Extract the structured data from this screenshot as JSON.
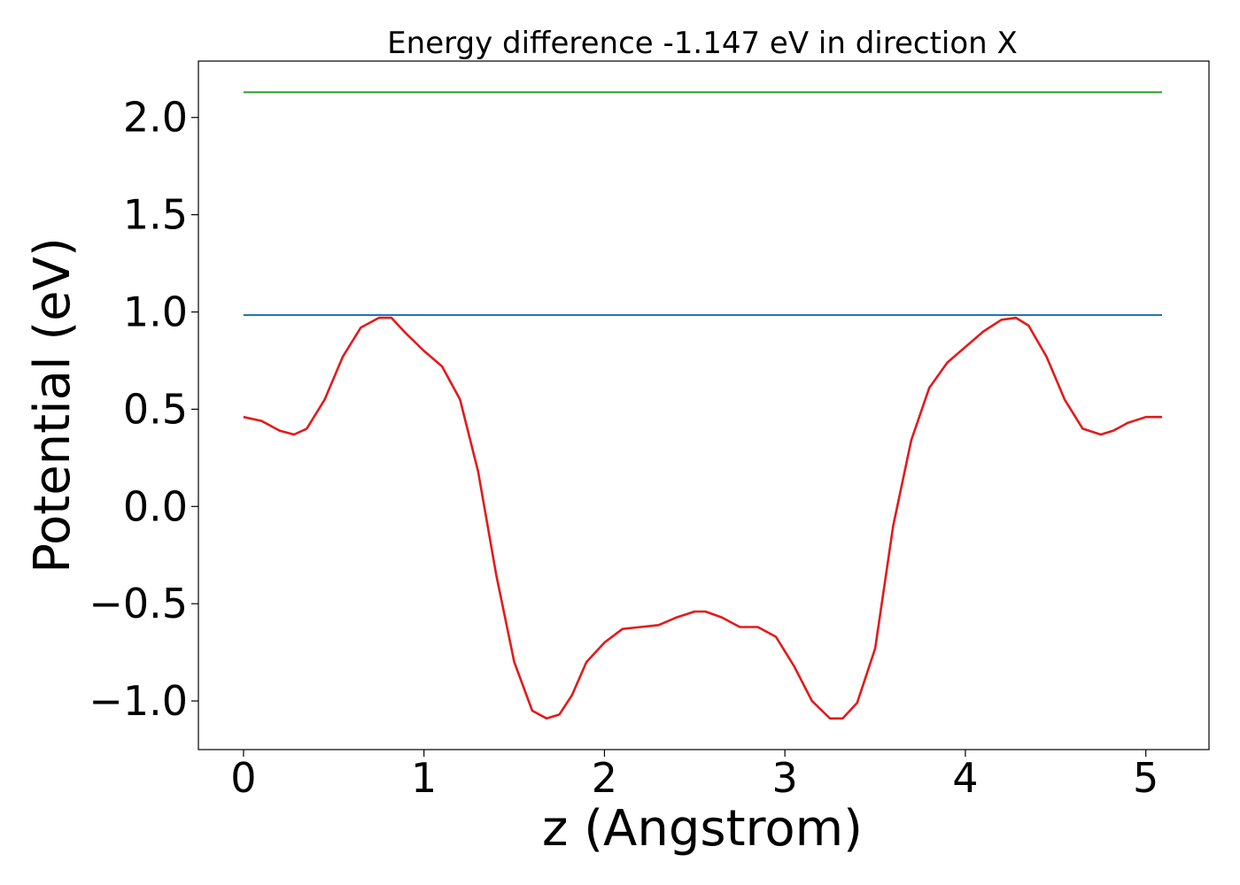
{
  "chart_data": {
    "type": "line",
    "title": "Energy difference -1.147 eV in direction X",
    "xlabel": "z (Angstrom)",
    "ylabel": "Potential (eV)",
    "xlim": [
      -0.25,
      5.35
    ],
    "ylim": [
      -1.25,
      2.29
    ],
    "xticks": [
      0,
      1,
      2,
      3,
      4,
      5
    ],
    "xtick_labels": [
      "0",
      "1",
      "2",
      "3",
      "4",
      "5"
    ],
    "yticks": [
      -1.0,
      -0.5,
      0.0,
      0.5,
      1.0,
      1.5,
      2.0
    ],
    "ytick_labels": [
      "−1.0",
      "−0.5",
      "0.0",
      "0.5",
      "1.0",
      "1.5",
      "2.0"
    ],
    "grid": false,
    "series": [
      {
        "color": "#2ca02c",
        "x": [
          0,
          5.09
        ],
        "y": [
          2.13,
          2.13
        ]
      },
      {
        "color": "#1f77b4",
        "x": [
          0,
          5.09
        ],
        "y": [
          0.984,
          0.984
        ]
      },
      {
        "color": "#e31a1c",
        "x": [
          0,
          0.1,
          0.2,
          0.28,
          0.35,
          0.45,
          0.55,
          0.65,
          0.75,
          0.82,
          0.9,
          1.0,
          1.1,
          1.2,
          1.3,
          1.4,
          1.5,
          1.6,
          1.68,
          1.75,
          1.82,
          1.9,
          2.0,
          2.1,
          2.2,
          2.3,
          2.4,
          2.5,
          2.56,
          2.65,
          2.75,
          2.85,
          2.95,
          3.05,
          3.15,
          3.25,
          3.32,
          3.4,
          3.5,
          3.6,
          3.7,
          3.8,
          3.9,
          4.0,
          4.1,
          4.2,
          4.28,
          4.35,
          4.45,
          4.55,
          4.65,
          4.75,
          4.82,
          4.9,
          5.0,
          5.09
        ],
        "y": [
          0.46,
          0.44,
          0.39,
          0.37,
          0.4,
          0.55,
          0.77,
          0.92,
          0.97,
          0.97,
          0.89,
          0.8,
          0.72,
          0.55,
          0.18,
          -0.35,
          -0.8,
          -1.05,
          -1.09,
          -1.07,
          -0.97,
          -0.8,
          -0.7,
          -0.63,
          -0.62,
          -0.61,
          -0.57,
          -0.54,
          -0.54,
          -0.57,
          -0.62,
          -0.62,
          -0.67,
          -0.82,
          -1.0,
          -1.09,
          -1.09,
          -1.01,
          -0.73,
          -0.1,
          0.34,
          0.61,
          0.74,
          0.82,
          0.9,
          0.96,
          0.97,
          0.93,
          0.77,
          0.55,
          0.4,
          0.37,
          0.39,
          0.43,
          0.46,
          0.46
        ]
      }
    ]
  }
}
